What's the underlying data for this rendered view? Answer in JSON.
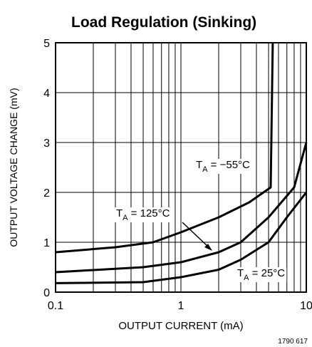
{
  "chart_data": {
    "type": "line",
    "title": "Load Regulation (Sinking)",
    "xlabel": "OUTPUT CURRENT (mA)",
    "ylabel": "OUTPUT VOLTAGE CHANGE (mV)",
    "xscale": "log",
    "xlim": [
      0.1,
      10
    ],
    "xticks": [
      0.1,
      1,
      10
    ],
    "xgrid": [
      0.2,
      0.3,
      0.4,
      0.5,
      0.6,
      0.7,
      0.8,
      0.9,
      2,
      3,
      4,
      5,
      6,
      7,
      8,
      9
    ],
    "ylim": [
      0,
      5
    ],
    "yticks": [
      0,
      1,
      2,
      3,
      4,
      5
    ],
    "grid": true,
    "series": [
      {
        "color": "#000000",
        "x": [
          0.1,
          0.3,
          0.6,
          1,
          2,
          3.5,
          5.2,
          5.4
        ],
        "values": [
          0.8,
          0.9,
          1.0,
          1.2,
          1.5,
          1.8,
          2.1,
          5
        ]
      },
      {
        "color": "#000000",
        "x": [
          0.1,
          0.5,
          1,
          2,
          3,
          5,
          8,
          10
        ],
        "values": [
          0.4,
          0.5,
          0.6,
          0.8,
          1.0,
          1.5,
          2.1,
          3.0
        ]
      },
      {
        "color": "#000000",
        "x": [
          0.1,
          0.5,
          1,
          2,
          3,
          5,
          7,
          10
        ],
        "values": [
          0.18,
          0.2,
          0.3,
          0.45,
          0.65,
          1.0,
          1.5,
          2.0
        ]
      }
    ],
    "annotations": [
      {
        "prefix": "T",
        "sub": "A",
        "suffix": " = −55°C"
      },
      {
        "prefix": "T",
        "sub": "A",
        "suffix": " = 125°C"
      },
      {
        "prefix": "T",
        "sub": "A",
        "suffix": " = 25°C"
      }
    ],
    "footnote": "1790 617"
  }
}
